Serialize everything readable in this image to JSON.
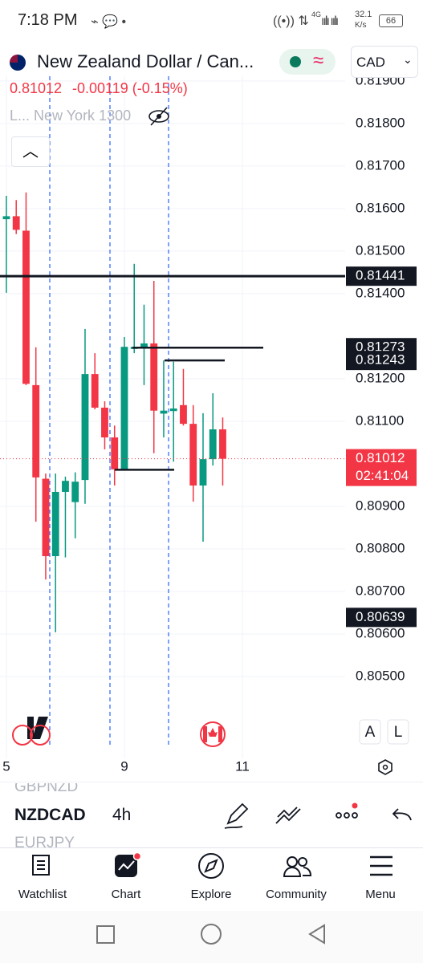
{
  "status_bar": {
    "time": "7:18 PM",
    "network": "4G",
    "speed": "32.1",
    "speed_unit": "K/s",
    "battery": "66"
  },
  "header": {
    "symbol_name": "New Zealand Dollar / Can...",
    "currency": "CAD",
    "price": "0.81012",
    "change": "-0.00119 (-0.15%)",
    "session": "L... New York 1300"
  },
  "chart_data": {
    "type": "candlestick",
    "x": [
      0,
      1,
      2,
      3,
      4,
      5,
      6,
      7,
      8,
      9,
      10,
      11,
      12,
      13,
      14,
      15,
      16,
      17,
      18,
      19,
      20,
      21,
      22
    ],
    "open": [
      0.81575,
      0.81582,
      0.81548,
      0.81185,
      0.80965,
      0.80783,
      0.80934,
      0.8091,
      0.80962,
      0.81211,
      0.81132,
      0.81062,
      0.80987,
      0.8127,
      0.81273,
      0.81283,
      0.81118,
      0.81124,
      0.81138,
      0.81094,
      0.80949,
      0.81011,
      0.81081
    ],
    "high": [
      0.8163,
      0.8162,
      0.81638,
      0.81274,
      0.80977,
      0.80977,
      0.8097,
      0.8098,
      0.81317,
      0.8126,
      0.81147,
      0.8109,
      0.81298,
      0.8147,
      0.81374,
      0.8143,
      0.81243,
      0.8124,
      0.81223,
      0.81138,
      0.81119,
      0.81166,
      0.81109
    ],
    "low": [
      0.81402,
      0.8154,
      0.81185,
      0.80864,
      0.80728,
      0.80604,
      0.8078,
      0.80825,
      0.80906,
      0.81128,
      0.81034,
      0.80949,
      0.80985,
      0.8126,
      0.81185,
      0.81025,
      0.81062,
      0.81005,
      0.8109,
      0.80911,
      0.80817,
      0.80996,
      0.80949
    ],
    "close": [
      0.81582,
      0.8155,
      0.81188,
      0.80968,
      0.80783,
      0.80934,
      0.8096,
      0.80958,
      0.81211,
      0.81132,
      0.81062,
      0.80987,
      0.81275,
      0.81275,
      0.81283,
      0.81125,
      0.81125,
      0.8113,
      0.81094,
      0.80949,
      0.81011,
      0.81081,
      0.81012
    ],
    "up_color": "#089981",
    "down_color": "#f23645",
    "xlim": [
      -0.65,
      34.45
    ],
    "xticks": [
      {
        "value": 0,
        "label": "5"
      },
      {
        "value": 12,
        "label": "9"
      },
      {
        "value": 24,
        "label": "11"
      }
    ],
    "ylim": [
      0.80402,
      0.81911
    ],
    "yticks": [
      {
        "value": 0.819,
        "label": "0.81900"
      },
      {
        "value": 0.818,
        "label": "0.81800"
      },
      {
        "value": 0.817,
        "label": "0.81700"
      },
      {
        "value": 0.816,
        "label": "0.81600"
      },
      {
        "value": 0.815,
        "label": "0.81500"
      },
      {
        "value": 0.814,
        "label": "0.81400"
      },
      {
        "value": 0.812,
        "label": "0.81200"
      },
      {
        "value": 0.811,
        "label": "0.81100"
      },
      {
        "value": 0.809,
        "label": "0.80900"
      },
      {
        "value": 0.808,
        "label": "0.80800"
      },
      {
        "value": 0.807,
        "label": "0.80700"
      },
      {
        "value": 0.806,
        "label": "0.80600"
      },
      {
        "value": 0.805,
        "label": "0.80500"
      }
    ],
    "grid": true,
    "price_lines": [
      0.81441,
      0.81273,
      0.81243,
      0.80986
    ],
    "price_labels": [
      0.80639
    ],
    "last_price": 0.81012,
    "countdown": "02:41:04"
  },
  "scale_buttons": [
    "A",
    "L"
  ],
  "toolbar": {
    "symbols": [
      "GBPNZD",
      "NZDCAD",
      "EURJPY"
    ],
    "interval": "4h"
  },
  "nav": [
    "Watchlist",
    "Chart",
    "Explore",
    "Community",
    "Menu"
  ]
}
